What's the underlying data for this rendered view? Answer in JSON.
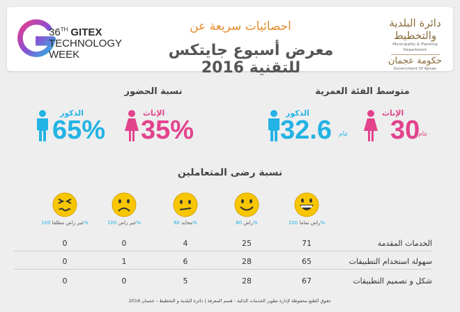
{
  "header": {
    "gitex": {
      "line1_num": "36",
      "line1_sup": "TH",
      "line1_word": "GITEX",
      "line2": "TECHNOLOGY",
      "line3": "WEEK"
    },
    "title_top": "احصائيات سريعة عن",
    "title_main": "معرض أسبوع جايتكس للتقنية 2016",
    "municipality": {
      "arabic": "دائرة البلدية والتخطيط",
      "english": "Municipality & Planning Department",
      "gov_arabic": "حكومة عجمان",
      "gov_english": "Government Of Ajman"
    }
  },
  "attendance": {
    "title": "نسبة الحضور",
    "females": {
      "label": "الإناث",
      "value": "35%"
    },
    "males": {
      "label": "الذكور",
      "value": "65%"
    }
  },
  "age": {
    "title": "متوسط الفئة العمرية",
    "females": {
      "label": "الإناث",
      "value": "30",
      "unit": "عام"
    },
    "males": {
      "label": "الذكور",
      "value": "32.6",
      "unit": "عام"
    }
  },
  "satisfaction": {
    "title": "نسبة رضى المتعاملين",
    "columns": [
      {
        "label": "راض تماما",
        "pct": "100%"
      },
      {
        "label": "راض",
        "pct": "80%"
      },
      {
        "label": "محايد",
        "pct": "60%"
      },
      {
        "label": "غير راض",
        "pct": "100%"
      },
      {
        "label": "غير راض مطلقا",
        "pct": "100%"
      }
    ],
    "rows": [
      {
        "label": "الخدمات المقدمة",
        "values": [
          "71",
          "25",
          "4",
          "0",
          "0"
        ]
      },
      {
        "label": "سهولة استخدام التطبيقات",
        "values": [
          "65",
          "28",
          "6",
          "1",
          "0"
        ]
      },
      {
        "label": "شكل و تصميم التطبيقات",
        "values": [
          "67",
          "28",
          "5",
          "0",
          "0"
        ]
      }
    ]
  },
  "colors": {
    "pink": "#e2438c",
    "blue": "#23b3e4",
    "orange": "#e48d2c",
    "face": "#f7c600"
  },
  "footer": "حقوق الطبع محفوظة لإدارة تطوير الخدمات الذكية - قسم المعرفة | دائرة البلدية و التخطيط - عجمان 2016"
}
